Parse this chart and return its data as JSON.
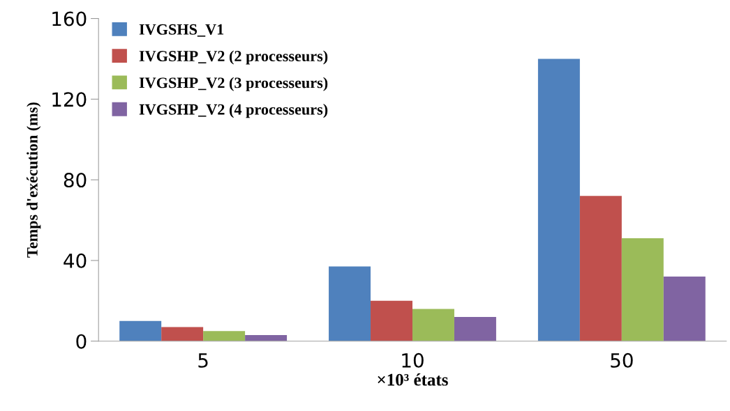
{
  "chart_data": {
    "type": "bar",
    "xlabel": "×10³ états",
    "ylabel": "Temps d'exécution (ms)",
    "categories": [
      "5",
      "10",
      "50"
    ],
    "series": [
      {
        "name": "IVGSHS_V1",
        "color": "#4f81bd",
        "values": [
          10,
          37,
          140
        ]
      },
      {
        "name": "IVGSHP_V2 (2 processeurs)",
        "color": "#c0504d",
        "values": [
          7,
          20,
          72
        ]
      },
      {
        "name": "IVGSHP_V2 (3 processeurs)",
        "color": "#9bbb59",
        "values": [
          5,
          16,
          51
        ]
      },
      {
        "name": "IVGSHP_V2 (4 processeurs)",
        "color": "#8064a2",
        "values": [
          3,
          12,
          32
        ]
      }
    ],
    "ylim": [
      0,
      160
    ],
    "yticks": [
      0,
      40,
      80,
      120,
      160
    ],
    "grid": false,
    "legend": "top left"
  }
}
